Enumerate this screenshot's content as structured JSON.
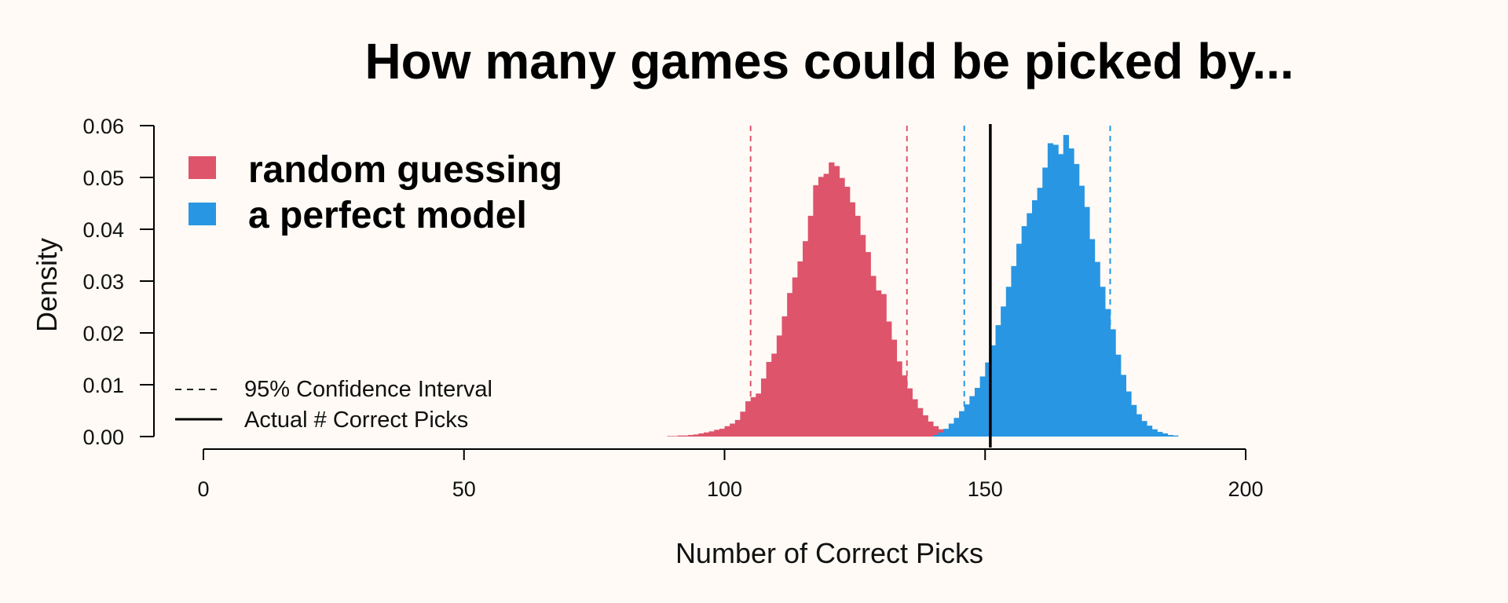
{
  "chart_data": {
    "type": "histogram",
    "title": "How many games could be picked by...",
    "xlabel": "Number of Correct Picks",
    "ylabel": "Density",
    "xlim": [
      0,
      200
    ],
    "ylim": [
      0,
      0.06
    ],
    "xticks": [
      0,
      50,
      100,
      150,
      200
    ],
    "yticks": [
      "0.00",
      "0.01",
      "0.02",
      "0.03",
      "0.04",
      "0.05",
      "0.06"
    ],
    "bin_width": 1,
    "grid": false,
    "legend_placement": "top-left",
    "series": [
      {
        "name": "random guessing",
        "color": "#de546b",
        "bin_start": 89,
        "values": [
          0.0001,
          0.0001,
          0.0002,
          0.0002,
          0.0003,
          0.0004,
          0.0006,
          0.0008,
          0.001,
          0.0013,
          0.0015,
          0.002,
          0.0025,
          0.0032,
          0.0048,
          0.0068,
          0.0076,
          0.0083,
          0.0112,
          0.0144,
          0.016,
          0.0195,
          0.0232,
          0.0277,
          0.0307,
          0.0338,
          0.0377,
          0.0426,
          0.0485,
          0.0501,
          0.0507,
          0.0529,
          0.0522,
          0.0499,
          0.0482,
          0.0452,
          0.0426,
          0.0389,
          0.0356,
          0.031,
          0.0282,
          0.0275,
          0.0222,
          0.0187,
          0.0145,
          0.0118,
          0.0093,
          0.0072,
          0.0055,
          0.0041,
          0.0029,
          0.002,
          0.0014,
          0.001,
          0.0007,
          0.0004,
          0.0003,
          0.0002
        ]
      },
      {
        "name": "a perfect model",
        "color": "#2896e3",
        "bin_start": 140,
        "values": [
          0.0003,
          0.0008,
          0.0015,
          0.0025,
          0.0036,
          0.0049,
          0.0062,
          0.0078,
          0.0094,
          0.0116,
          0.0143,
          0.0176,
          0.0215,
          0.0251,
          0.0289,
          0.0329,
          0.0372,
          0.0406,
          0.0431,
          0.0456,
          0.048,
          0.0519,
          0.0566,
          0.0563,
          0.0545,
          0.0582,
          0.0556,
          0.0526,
          0.0484,
          0.0443,
          0.0381,
          0.0337,
          0.0289,
          0.0246,
          0.0207,
          0.0158,
          0.0119,
          0.0087,
          0.0061,
          0.0043,
          0.003,
          0.0021,
          0.0014,
          0.0009,
          0.0006,
          0.0003,
          0.0002
        ]
      }
    ],
    "confidence_intervals": [
      {
        "series": "random guessing",
        "low": 105,
        "high": 135
      },
      {
        "series": "a perfect model",
        "low": 146,
        "high": 174
      }
    ],
    "actual_correct_picks": 151,
    "legend": {
      "series_entries": [
        "random guessing",
        "a perfect model"
      ],
      "line_entries": [
        {
          "label": "95% Confidence Interval",
          "style": "dashed"
        },
        {
          "label": "Actual # Correct Picks",
          "style": "solid"
        }
      ]
    }
  }
}
